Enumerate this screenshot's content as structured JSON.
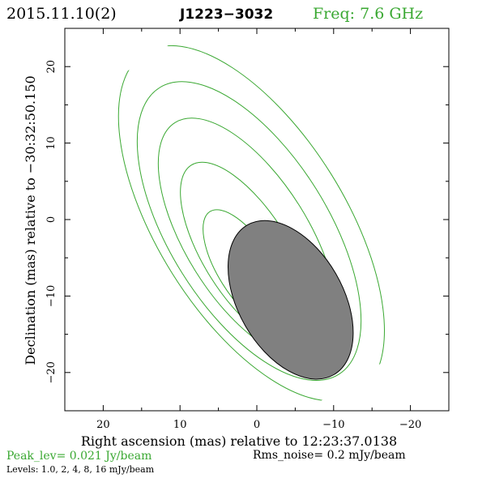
{
  "header": {
    "date": "2015.11.10(2)",
    "source": "J1223−3032",
    "freq": "Freq: 7.6 GHz"
  },
  "footer": {
    "peak": "Peak_lev=  0.021 Jy/beam",
    "rms": "Rms_noise=   0.2 mJy/beam",
    "levels": "Levels: 1.0,    2,    4,    8,   16 mJy/beam"
  },
  "colors": {
    "contour": "#3aa832",
    "beam_fill": "#808080",
    "text": "#000000",
    "accent_text": "#3aa832"
  },
  "chart_data": {
    "type": "contour",
    "xlabel": "Right ascension (mas) relative to 12:23:37.0138",
    "ylabel": "Declination (mas) relative to −30:32:50.150",
    "xlim": [
      25,
      -25
    ],
    "ylim": [
      -25,
      25
    ],
    "x_ticks": [
      20,
      10,
      0,
      -10,
      -20
    ],
    "x_tick_labels": [
      "20",
      "10",
      "0",
      "−10",
      "−20"
    ],
    "y_ticks": [
      20,
      10,
      0,
      -10,
      -20
    ],
    "y_tick_labels": [
      "20",
      "10",
      "0",
      "−10",
      "−20"
    ],
    "contour_levels_mJy": [
      1.0,
      2,
      4,
      8,
      16
    ],
    "contours": [
      {
        "level": 1.0,
        "cx": 0.7,
        "cy": -0.5,
        "semi_a": 26.3,
        "semi_b": 12.2,
        "pa_deg": -32
      },
      {
        "level": 2,
        "cx": 1.0,
        "cy": -1.5,
        "semi_a": 22.1,
        "semi_b": 10.3,
        "pa_deg": -32
      },
      {
        "level": 4,
        "cx": 1.2,
        "cy": -2.5,
        "semi_a": 17.9,
        "semi_b": 8.0,
        "pa_deg": -32
      },
      {
        "level": 8,
        "cx": 1.3,
        "cy": -4.5,
        "semi_a": 13.7,
        "semi_b": 5.6,
        "pa_deg": -32
      },
      {
        "level": 16,
        "cx": 1.4,
        "cy": -6.5,
        "semi_a": 8.9,
        "semi_b": 3.6,
        "pa_deg": -32
      }
    ],
    "beam": {
      "cx": -4.4,
      "cy": -10.5,
      "semi_a": 11.3,
      "semi_b": 6.8,
      "pa_deg": -30
    }
  }
}
